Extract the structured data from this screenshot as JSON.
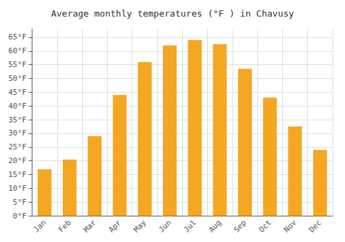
{
  "chart_data": {
    "type": "bar",
    "title": "Average monthly temperatures (°F ) in Chavusy",
    "categories": [
      "Jan",
      "Feb",
      "Mar",
      "Apr",
      "May",
      "Jun",
      "Jul",
      "Aug",
      "Sep",
      "Oct",
      "Nov",
      "Dec"
    ],
    "values": [
      17,
      20.5,
      29,
      44,
      56,
      62,
      64,
      62.5,
      53.5,
      43,
      32.5,
      24
    ],
    "color": "#F5A623",
    "ylim": [
      0,
      68
    ],
    "yticks": [
      {
        "value": 0,
        "label": "0°F"
      },
      {
        "value": 5,
        "label": "5°F"
      },
      {
        "value": 10,
        "label": "10°F"
      },
      {
        "value": 15,
        "label": "15°F"
      },
      {
        "value": 20,
        "label": "20°F"
      },
      {
        "value": 25,
        "label": "25°F"
      },
      {
        "value": 30,
        "label": "30°F"
      },
      {
        "value": 35,
        "label": "35°F"
      },
      {
        "value": 40,
        "label": "40°F"
      },
      {
        "value": 45,
        "label": "45°F"
      },
      {
        "value": 50,
        "label": "50°F"
      },
      {
        "value": 55,
        "label": "55°F"
      },
      {
        "value": 60,
        "label": "60°F"
      },
      {
        "value": 65,
        "label": "65°F"
      }
    ],
    "grid": true
  }
}
